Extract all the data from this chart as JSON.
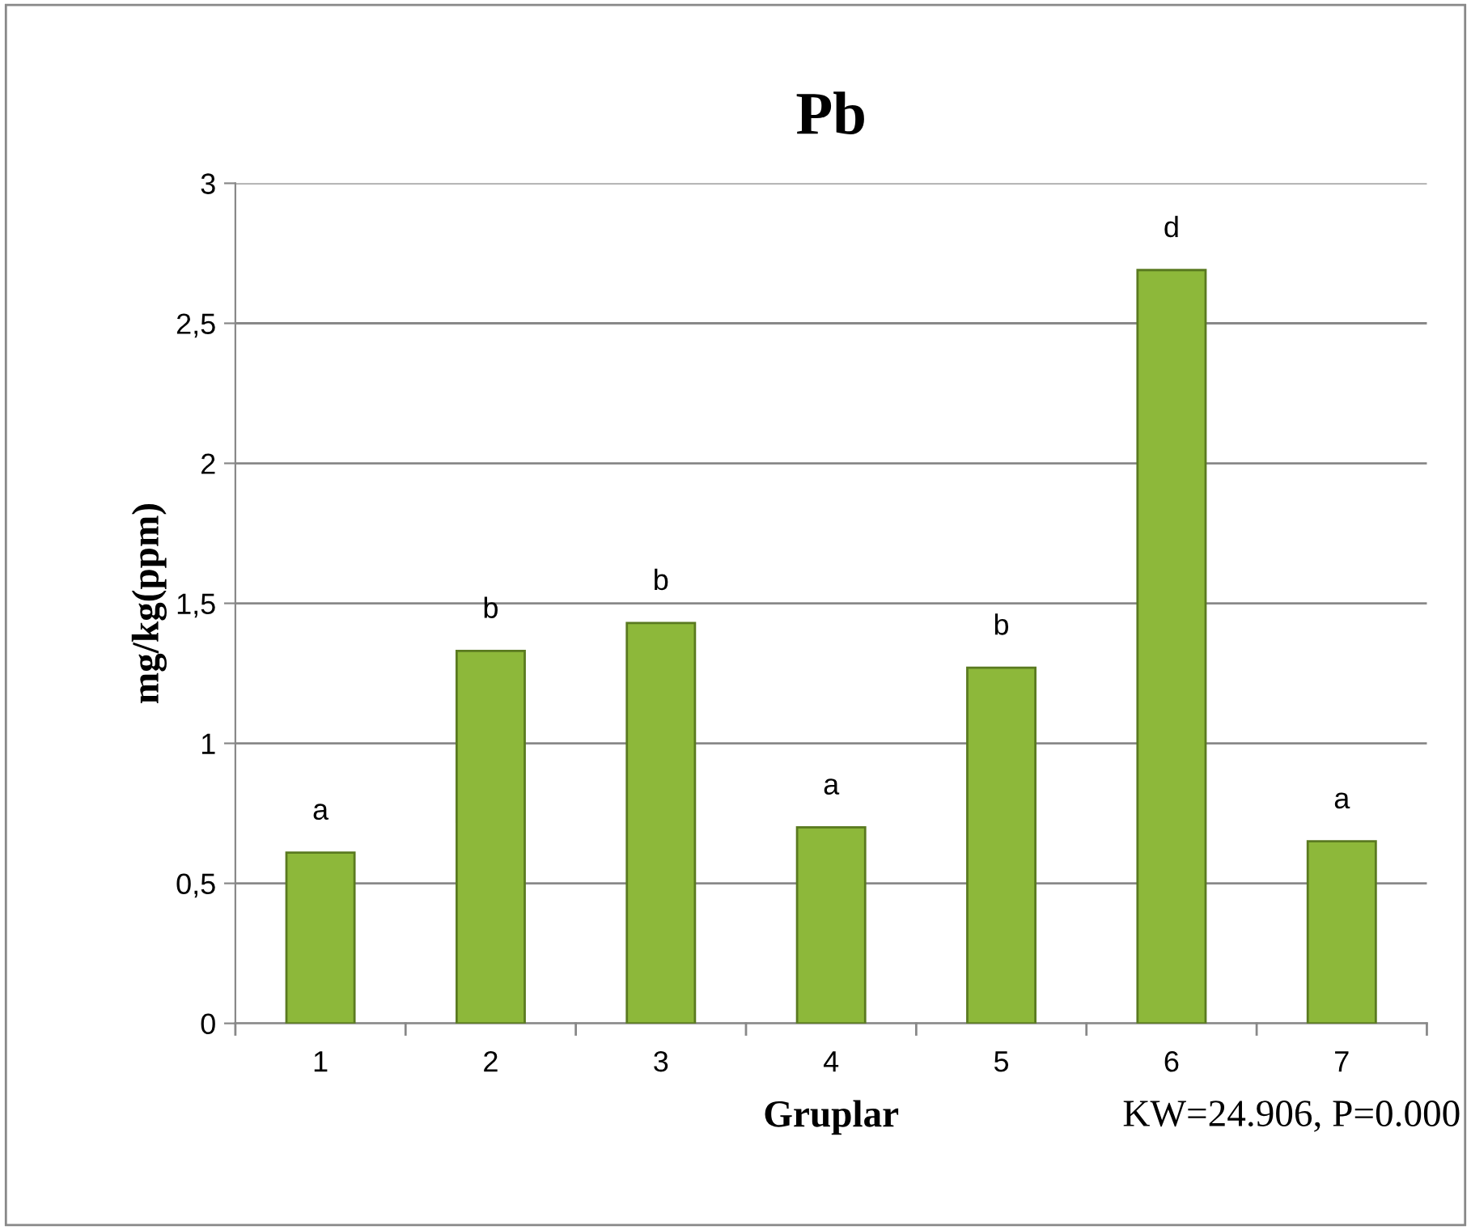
{
  "chart_data": {
    "type": "bar",
    "title": "Pb",
    "xlabel": "Gruplar",
    "ylabel": "mg/kg(ppm)",
    "categories": [
      "1",
      "2",
      "3",
      "4",
      "5",
      "6",
      "7"
    ],
    "values": [
      0.61,
      1.33,
      1.43,
      0.7,
      1.27,
      2.69,
      0.65
    ],
    "value_labels": [
      "a",
      "b",
      "b",
      "a",
      "b",
      "d",
      "a"
    ],
    "color": "#8db83a",
    "ylim": [
      0,
      3
    ],
    "yticks": [
      0,
      {
        "value": 0.5,
        "label": "0,5"
      },
      1,
      {
        "value": 1.5,
        "label": "1,5"
      },
      2,
      {
        "value": 2.5,
        "label": "2,5"
      },
      3
    ],
    "grid": "y",
    "legend": false,
    "annotations": [
      "KW=24.906, P=0.000"
    ]
  }
}
